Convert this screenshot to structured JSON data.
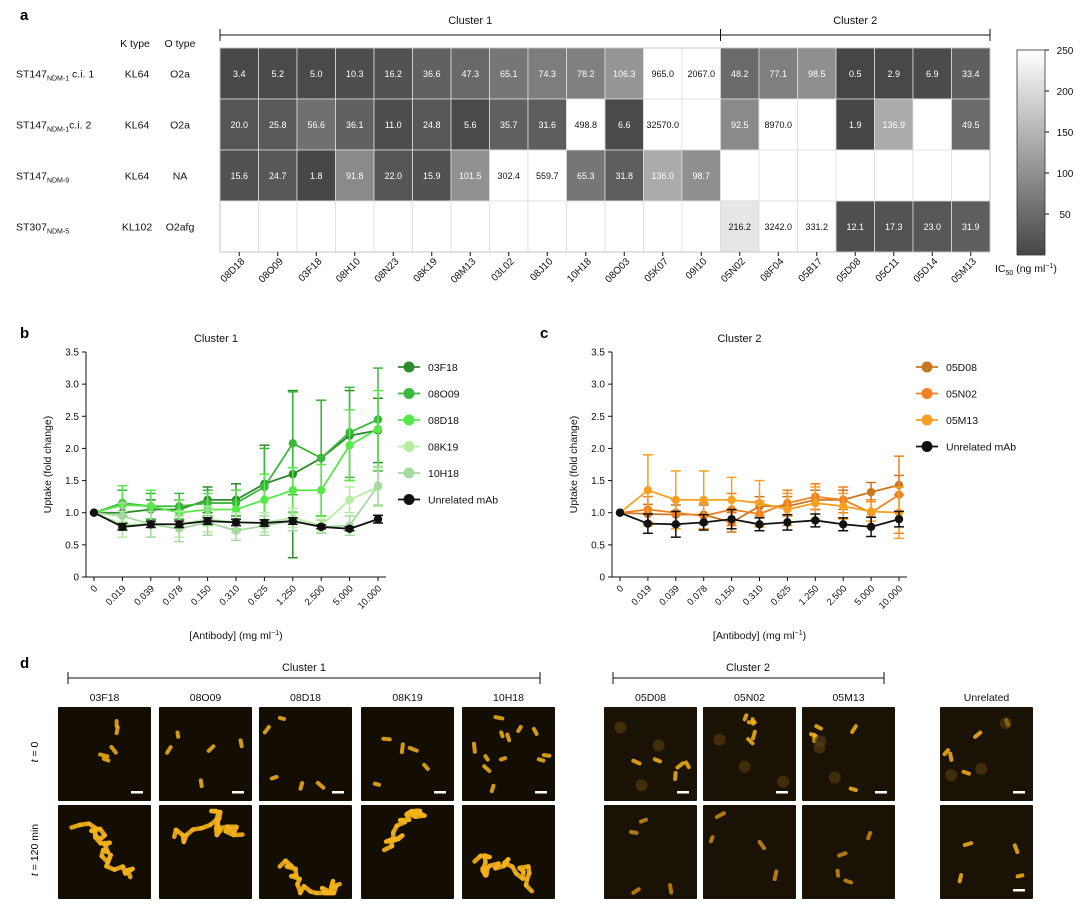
{
  "panel_letters": {
    "a": "a",
    "b": "b",
    "c": "c",
    "d": "d"
  },
  "heatmap": {
    "k_header": "K type",
    "o_header": "O type",
    "clusters": [
      "Cluster 1",
      "Cluster 2"
    ],
    "cluster1_count": 13,
    "rows": [
      {
        "base": "ST147",
        "sub": "NDM-1",
        "suffix": " c.i. 1",
        "k": "KL64",
        "o": "O2a"
      },
      {
        "base": "ST147",
        "sub": "NDM-1",
        "suffix": "c.i. 2",
        "k": "KL64",
        "o": "O2a"
      },
      {
        "base": "ST147",
        "sub": "NDM-9",
        "suffix": "",
        "k": "KL64",
        "o": "NA"
      },
      {
        "base": "ST307",
        "sub": "NDM-5",
        "suffix": "",
        "k": "KL102",
        "o": "O2afg"
      }
    ],
    "columns": [
      "08D18",
      "08O09",
      "03F18",
      "08H10",
      "08N23",
      "08K19",
      "08M13",
      "03L02",
      "08J10",
      "10H18",
      "08O03",
      "05K07",
      "09I10",
      "05N02",
      "08F04",
      "05B17",
      "05D08",
      "05C11",
      "05D14",
      "05M13"
    ],
    "values": [
      [
        "3.4",
        "5.2",
        "5.0",
        "10.3",
        "16.2",
        "36.6",
        "47.3",
        "65.1",
        "74.3",
        "78.2",
        "106.3",
        "965.0",
        "2067.0",
        "48.2",
        "77.1",
        "98.5",
        "0.5",
        "2.9",
        "6.9",
        "33.4"
      ],
      [
        "20.0",
        "25.8",
        "56.6",
        "36.1",
        "11.0",
        "24.8",
        "5.6",
        "35.7",
        "31.6",
        "498.8",
        "6.6",
        "32570.0",
        "",
        "92.5",
        "8970.0",
        "",
        "1.9",
        "136.9",
        "",
        "49.5"
      ],
      [
        "15.6",
        "24.7",
        "1.8",
        "91.8",
        "22.0",
        "15.9",
        "101.5",
        "302.4",
        "559.7",
        "65.3",
        "31.8",
        "136.0",
        "98.7",
        "",
        "",
        "",
        "",
        "",
        "",
        ""
      ],
      [
        "",
        "",
        "",
        "",
        "",
        "",
        "",
        "",
        "",
        "",
        "",
        "",
        "",
        "216.2",
        "3242.0",
        "331.2",
        "12.1",
        "17.3",
        "23.0",
        "31.9"
      ]
    ],
    "colorbar": {
      "ticks": [
        50,
        100,
        150,
        200,
        250
      ],
      "min": 0,
      "max": 250,
      "label": "IC",
      "label_sub": "50",
      "label_unit": " (ng ml",
      "label_sup": "−1",
      "label_end": ")"
    }
  },
  "chart_data": [
    {
      "type": "line",
      "title": "Cluster 1",
      "ylabel": "Uptake (fold change)",
      "xlabel": "[Antibody] (mg ml",
      "xlabel_sup": "−1",
      "xlabel_end": ")",
      "categories": [
        "0",
        "0.019",
        "0.039",
        "0.078",
        "0.150",
        "0.310",
        "0.625",
        "1.250",
        "2.500",
        "5.000",
        "10.000"
      ],
      "ylim": [
        0,
        3.5
      ],
      "yticks": [
        "0",
        "0.5",
        "1.0",
        "1.5",
        "2.0",
        "2.5",
        "3.0",
        "3.5"
      ],
      "legend_position": "right",
      "series": [
        {
          "name": "03F18",
          "color": "#2e8b2e",
          "values": [
            1.0,
            1.0,
            1.05,
            1.05,
            1.2,
            1.2,
            1.45,
            1.6,
            1.85,
            2.2,
            2.28
          ],
          "err": [
            0,
            0.15,
            0.15,
            0.15,
            0.2,
            0.25,
            0.6,
            1.3,
            0.9,
            0.7,
            0.5
          ]
        },
        {
          "name": "08O09",
          "color": "#3cb83c",
          "values": [
            1.0,
            1.15,
            1.1,
            1.1,
            1.15,
            1.15,
            1.4,
            2.08,
            1.85,
            2.25,
            2.45
          ],
          "err": [
            0,
            0.2,
            0.2,
            0.2,
            0.2,
            0.2,
            0.6,
            0.8,
            0.9,
            0.7,
            0.8
          ]
        },
        {
          "name": "08D18",
          "color": "#59e84a",
          "values": [
            1.0,
            1.12,
            1.1,
            1.0,
            1.05,
            1.05,
            1.2,
            1.35,
            1.35,
            2.05,
            2.3
          ],
          "err": [
            0,
            0.3,
            0.25,
            0.2,
            0.25,
            0.3,
            0.4,
            0.35,
            0.4,
            0.55,
            0.6
          ]
        },
        {
          "name": "08K19",
          "color": "#b5eda5",
          "values": [
            1.0,
            0.82,
            0.82,
            0.82,
            0.9,
            0.85,
            0.85,
            0.92,
            0.8,
            1.2,
            1.4
          ],
          "err": [
            0,
            0.2,
            0.2,
            0.2,
            0.2,
            0.15,
            0.15,
            0.15,
            0.1,
            0.2,
            0.3
          ]
        },
        {
          "name": "10H18",
          "color": "#a6d9a0",
          "values": [
            1.0,
            0.95,
            0.82,
            0.75,
            0.85,
            0.72,
            0.8,
            0.87,
            0.78,
            0.8,
            1.42
          ],
          "err": [
            0,
            0.2,
            0.2,
            0.2,
            0.2,
            0.15,
            0.15,
            0.15,
            0.1,
            0.15,
            0.3
          ]
        },
        {
          "name": "Unrelated mAb",
          "color": "#111111",
          "values": [
            1.0,
            0.78,
            0.82,
            0.82,
            0.87,
            0.85,
            0.84,
            0.87,
            0.78,
            0.75,
            0.9
          ],
          "err": [
            0,
            0.05,
            0.05,
            0.05,
            0.05,
            0.05,
            0.05,
            0.05,
            0.03,
            0.03,
            0.06
          ]
        }
      ]
    },
    {
      "type": "line",
      "title": "Cluster 2",
      "ylabel": "Uptake (fold change)",
      "xlabel": "[Antibody] (mg ml",
      "xlabel_sup": "−1",
      "xlabel_end": ")",
      "categories": [
        "0",
        "0.019",
        "0.039",
        "0.078",
        "0.150",
        "0.310",
        "0.625",
        "1.250",
        "2.500",
        "5.000",
        "10.000"
      ],
      "ylim": [
        0,
        3.5
      ],
      "yticks": [
        "0",
        "0.5",
        "1.0",
        "1.5",
        "2.0",
        "2.5",
        "3.0",
        "3.5"
      ],
      "legend_position": "right",
      "series": [
        {
          "name": "05D08",
          "color": "#c8761f",
          "values": [
            1.0,
            0.98,
            0.97,
            0.97,
            0.85,
            1.1,
            1.1,
            1.2,
            1.2,
            1.32,
            1.43
          ],
          "err": [
            0,
            0.15,
            0.15,
            0.15,
            0.15,
            0.15,
            0.15,
            0.15,
            0.15,
            0.15,
            0.15
          ]
        },
        {
          "name": "05N02",
          "color": "#f08020",
          "values": [
            1.0,
            1.05,
            1.0,
            0.95,
            1.05,
            0.98,
            1.15,
            1.25,
            1.2,
            1.0,
            1.28
          ],
          "err": [
            0,
            0.2,
            0.2,
            0.2,
            0.25,
            0.2,
            0.2,
            0.2,
            0.2,
            0.2,
            0.6
          ]
        },
        {
          "name": "05M13",
          "color": "#f5a021",
          "values": [
            1.0,
            1.35,
            1.2,
            1.2,
            1.2,
            1.15,
            1.05,
            1.15,
            1.1,
            1.02,
            1.0
          ],
          "err": [
            0,
            0.55,
            0.45,
            0.45,
            0.35,
            0.35,
            0.25,
            0.25,
            0.2,
            0.15,
            0.4
          ]
        },
        {
          "name": "Unrelated mAb",
          "color": "#111111",
          "values": [
            1.0,
            0.83,
            0.82,
            0.85,
            0.9,
            0.82,
            0.85,
            0.88,
            0.82,
            0.78,
            0.9
          ],
          "err": [
            0,
            0.15,
            0.2,
            0.12,
            0.15,
            0.1,
            0.12,
            0.1,
            0.1,
            0.15,
            0.12
          ]
        }
      ]
    }
  ],
  "micrographs": {
    "row_labels": [
      "t",
      " = 0",
      "t",
      " = 120 min"
    ],
    "cluster1_label": "Cluster 1",
    "cluster2_label": "Cluster 2",
    "columns": [
      "03F18",
      "08O09",
      "08D18",
      "08K19",
      "10H18",
      "05D08",
      "05N02",
      "05M13",
      "Unrelated"
    ]
  }
}
